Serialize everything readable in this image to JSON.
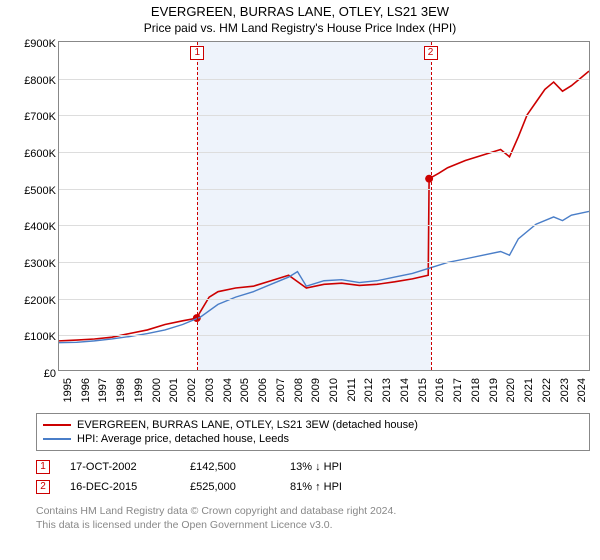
{
  "title": "EVERGREEN, BURRAS LANE, OTLEY, LS21 3EW",
  "subtitle": "Price paid vs. HM Land Registry's House Price Index (HPI)",
  "chart": {
    "type": "line",
    "background_color": "#ffffff",
    "grid_color": "#dddddd",
    "shade_color": "#eef3fb",
    "border_color": "#888888",
    "x_years": [
      1995,
      1996,
      1997,
      1998,
      1999,
      2000,
      2001,
      2002,
      2003,
      2004,
      2005,
      2006,
      2007,
      2008,
      2009,
      2010,
      2011,
      2012,
      2013,
      2014,
      2015,
      2016,
      2017,
      2018,
      2019,
      2020,
      2021,
      2022,
      2023,
      2024
    ],
    "x_range": [
      1995,
      2025
    ],
    "y_range": [
      0,
      900
    ],
    "y_ticks": [
      0,
      100,
      200,
      300,
      400,
      500,
      600,
      700,
      800,
      900
    ],
    "y_tick_prefix": "£",
    "y_tick_suffix": "K",
    "label_fontsize": 11,
    "shade_x": [
      2002.8,
      2015.95
    ],
    "series": [
      {
        "name": "EVERGREEN, BURRAS LANE, OTLEY, LS21 3EW (detached house)",
        "color": "#cc0000",
        "line_width": 1.6,
        "points": [
          [
            1995,
            80
          ],
          [
            1996,
            82
          ],
          [
            1997,
            85
          ],
          [
            1998,
            90
          ],
          [
            1999,
            100
          ],
          [
            2000,
            110
          ],
          [
            2001,
            125
          ],
          [
            2002,
            135
          ],
          [
            2002.8,
            142.5
          ],
          [
            2003,
            160
          ],
          [
            2003.5,
            200
          ],
          [
            2004,
            215
          ],
          [
            2005,
            225
          ],
          [
            2006,
            230
          ],
          [
            2007,
            245
          ],
          [
            2008,
            260
          ],
          [
            2009,
            225
          ],
          [
            2010,
            235
          ],
          [
            2011,
            238
          ],
          [
            2012,
            232
          ],
          [
            2013,
            235
          ],
          [
            2014,
            242
          ],
          [
            2015,
            250
          ],
          [
            2015.9,
            260
          ],
          [
            2015.95,
            525
          ],
          [
            2016.5,
            540
          ],
          [
            2017,
            555
          ],
          [
            2018,
            575
          ],
          [
            2019,
            590
          ],
          [
            2020,
            605
          ],
          [
            2020.5,
            585
          ],
          [
            2021,
            640
          ],
          [
            2021.5,
            700
          ],
          [
            2022,
            735
          ],
          [
            2022.5,
            770
          ],
          [
            2023,
            790
          ],
          [
            2023.5,
            765
          ],
          [
            2024,
            780
          ],
          [
            2024.5,
            800
          ],
          [
            2025,
            820
          ]
        ],
        "markers": [
          {
            "label": "1",
            "x": 2002.8,
            "y": 142.5
          },
          {
            "label": "2",
            "x": 2015.95,
            "y": 525
          }
        ]
      },
      {
        "name": "HPI: Average price, detached house, Leeds",
        "color": "#4a7ec8",
        "line_width": 1.4,
        "points": [
          [
            1995,
            75
          ],
          [
            1996,
            76
          ],
          [
            1997,
            80
          ],
          [
            1998,
            85
          ],
          [
            1999,
            92
          ],
          [
            2000,
            100
          ],
          [
            2001,
            110
          ],
          [
            2002,
            125
          ],
          [
            2003,
            145
          ],
          [
            2004,
            180
          ],
          [
            2005,
            200
          ],
          [
            2006,
            215
          ],
          [
            2007,
            235
          ],
          [
            2008,
            255
          ],
          [
            2008.5,
            270
          ],
          [
            2009,
            230
          ],
          [
            2010,
            245
          ],
          [
            2011,
            248
          ],
          [
            2012,
            240
          ],
          [
            2013,
            245
          ],
          [
            2014,
            255
          ],
          [
            2015,
            265
          ],
          [
            2016,
            280
          ],
          [
            2017,
            295
          ],
          [
            2018,
            305
          ],
          [
            2019,
            315
          ],
          [
            2020,
            325
          ],
          [
            2020.5,
            315
          ],
          [
            2021,
            360
          ],
          [
            2022,
            400
          ],
          [
            2023,
            420
          ],
          [
            2023.5,
            410
          ],
          [
            2024,
            425
          ],
          [
            2025,
            435
          ]
        ]
      }
    ]
  },
  "legend": [
    {
      "color": "#cc0000",
      "label": "EVERGREEN, BURRAS LANE, OTLEY, LS21 3EW (detached house)"
    },
    {
      "color": "#4a7ec8",
      "label": "HPI: Average price, detached house, Leeds"
    }
  ],
  "events": [
    {
      "num": "1",
      "date": "17-OCT-2002",
      "price": "£142,500",
      "hpi": "13% ↓ HPI"
    },
    {
      "num": "2",
      "date": "16-DEC-2015",
      "price": "£525,000",
      "hpi": "81% ↑ HPI"
    }
  ],
  "footnote_line1": "Contains HM Land Registry data © Crown copyright and database right 2024.",
  "footnote_line2": "This data is licensed under the Open Government Licence v3.0."
}
